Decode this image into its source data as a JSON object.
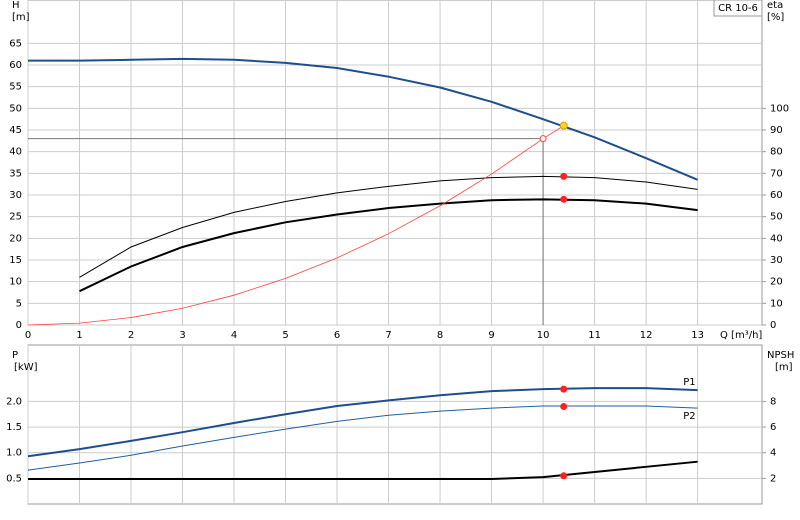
{
  "chart_data": [
    {
      "type": "line",
      "ylabel": "H",
      "yunit": "[m]",
      "y2label": "eta",
      "y2unit": "[%]",
      "xlabel": "Q [m³/h]",
      "label": "CR 10-6",
      "xlim": [
        0,
        14.25
      ],
      "xticks": [
        0,
        1,
        2,
        3,
        4,
        5,
        6,
        7,
        8,
        9,
        10,
        11,
        12,
        13
      ],
      "ylim": [
        0,
        75
      ],
      "yticks": [
        0,
        5,
        10,
        15,
        20,
        25,
        30,
        35,
        40,
        45,
        50,
        55,
        60,
        65
      ],
      "y2lim": [
        0,
        150
      ],
      "y2ticks": [
        0,
        10,
        20,
        30,
        40,
        50,
        60,
        70,
        80,
        90,
        100
      ],
      "grid": true,
      "series": [
        {
          "color": "#1f4e8c",
          "style": "thick",
          "x": [
            0,
            1,
            2,
            3,
            4,
            5,
            6,
            7,
            8,
            9,
            10,
            11,
            12,
            13
          ],
          "values": [
            61,
            61,
            61.2,
            61.4,
            61.2,
            60.5,
            59.3,
            57.3,
            54.8,
            51.5,
            47.5,
            43.3,
            38.5,
            33.5
          ]
        },
        {
          "color": "#000000",
          "style": "thin",
          "axis": "y2",
          "x": [
            1,
            2,
            3,
            4,
            5,
            6,
            7,
            8,
            9,
            10,
            11,
            12,
            13
          ],
          "values": [
            22,
            36,
            45,
            52,
            57,
            61,
            64,
            66.5,
            68,
            68.6,
            68,
            66,
            62.6
          ]
        },
        {
          "color": "#000000",
          "style": "thick",
          "axis": "y2",
          "x": [
            1,
            2,
            3,
            4,
            5,
            6,
            7,
            8,
            9,
            10,
            11,
            12,
            13
          ],
          "values": [
            15.6,
            27,
            36,
            42.4,
            47.4,
            51,
            54,
            56,
            57.6,
            58,
            57.6,
            56,
            53
          ]
        },
        {
          "color": "#ff4040",
          "style": "hair",
          "x": [
            0,
            1,
            2,
            3,
            4,
            5,
            6,
            7,
            8,
            9,
            10,
            10.4
          ],
          "values": [
            0,
            0.43,
            1.72,
            3.87,
            6.88,
            10.75,
            15.48,
            21.07,
            27.52,
            34.83,
            43,
            46
          ]
        }
      ],
      "duty_point": {
        "x": 10,
        "y": 43,
        "color": "#ff4040"
      },
      "points": [
        {
          "x": 10.4,
          "y": 46,
          "color": "#ffd21f"
        },
        {
          "x": 10.4,
          "y": 68.6,
          "axis": "y2",
          "color": "#ff2020"
        },
        {
          "x": 10.4,
          "y": 58,
          "axis": "y2",
          "color": "#ff2020"
        }
      ]
    },
    {
      "type": "line",
      "ylabel": "P",
      "yunit": "[kW]",
      "y2label": "NPSH",
      "y2unit": "[m]",
      "xlim": [
        0,
        14.25
      ],
      "xticks": [
        0,
        1,
        2,
        3,
        4,
        5,
        6,
        7,
        8,
        9,
        10,
        11,
        12,
        13
      ],
      "ylim": [
        0,
        3.1
      ],
      "yticks": [
        0.5,
        {
          "value": 1.0,
          "label": "1.0"
        },
        1.5,
        {
          "value": 2.0,
          "label": "2.0"
        }
      ],
      "y2lim": [
        0,
        12.4
      ],
      "y2ticks": [
        2,
        4,
        6,
        8
      ],
      "grid": true,
      "series": [
        {
          "name": "P1",
          "label_side": "above",
          "color": "#1f4e8c",
          "style": "thick",
          "x": [
            0,
            1,
            2,
            3,
            4,
            5,
            6,
            7,
            8,
            9,
            10,
            11,
            12,
            13
          ],
          "values": [
            0.93,
            1.07,
            1.23,
            1.4,
            1.58,
            1.75,
            1.91,
            2.02,
            2.12,
            2.2,
            2.24,
            2.26,
            2.26,
            2.22
          ]
        },
        {
          "name": "P2",
          "label_side": "below",
          "color": "#1f5fa0",
          "style": "thin",
          "x": [
            0,
            1,
            2,
            3,
            4,
            5,
            6,
            7,
            8,
            9,
            10,
            11,
            12,
            13
          ],
          "values": [
            0.66,
            0.8,
            0.95,
            1.13,
            1.3,
            1.46,
            1.61,
            1.73,
            1.81,
            1.87,
            1.91,
            1.91,
            1.91,
            1.87
          ]
        },
        {
          "color": "#000000",
          "style": "thick",
          "axis": "y2",
          "x": [
            0,
            1,
            2,
            3,
            4,
            5,
            6,
            7,
            8,
            9,
            10,
            11,
            12,
            13
          ],
          "values": [
            1.95,
            1.95,
            1.95,
            1.95,
            1.95,
            1.95,
            1.95,
            1.95,
            1.95,
            1.95,
            2.1,
            2.5,
            2.9,
            3.3
          ]
        }
      ],
      "points": [
        {
          "x": 10.4,
          "y": 2.24,
          "color": "#ff2020"
        },
        {
          "x": 10.4,
          "y": 1.9,
          "color": "#ff2020"
        },
        {
          "x": 10.4,
          "y": 2.2,
          "axis": "y2",
          "color": "#ff2020"
        }
      ]
    }
  ]
}
